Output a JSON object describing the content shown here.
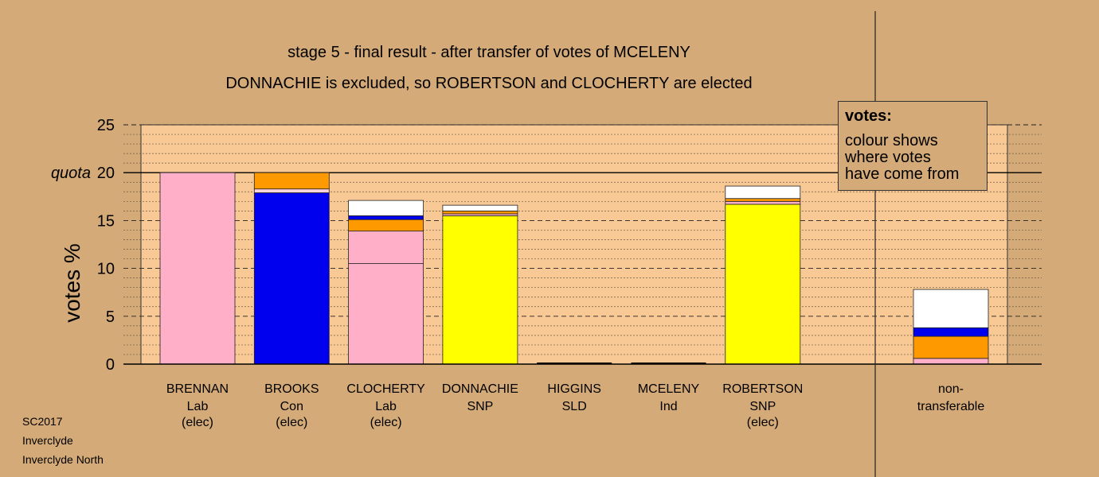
{
  "chart_data": {
    "type": "bar",
    "stacked": true,
    "title": "stage 5 - final result - after transfer of votes of MCELENY",
    "subtitle": "DONNACHIE is excluded, so ROBERTSON and CLOCHERTY are elected",
    "ylabel": "votes %",
    "ylim": [
      0,
      25
    ],
    "yticks": [
      0,
      5,
      10,
      15,
      20,
      25
    ],
    "quota": 20,
    "quota_label": "quota",
    "grid": true,
    "colors": {
      "lab": "#ffafc8",
      "con": "#0000ee",
      "snp": "#ffff00",
      "ind": "#ff9900",
      "other": "#ffffff",
      "lab_light": "#ffd2dc"
    },
    "candidates": [
      {
        "name": "BRENNAN",
        "party": "Lab",
        "status": "(elec)",
        "segments": [
          {
            "value": 20.0,
            "color": "lab"
          }
        ]
      },
      {
        "name": "BROOKS",
        "party": "Con",
        "status": "(elec)",
        "segments": [
          {
            "value": 17.9,
            "color": "con"
          },
          {
            "value": 0.4,
            "color": "lab_light"
          },
          {
            "value": 1.7,
            "color": "ind"
          }
        ]
      },
      {
        "name": "CLOCHERTY",
        "party": "Lab",
        "status": "(elec)",
        "segments": [
          {
            "value": 10.5,
            "color": "lab"
          },
          {
            "value": 3.4,
            "color": "lab"
          },
          {
            "value": 1.2,
            "color": "ind"
          },
          {
            "value": 0.4,
            "color": "con"
          },
          {
            "value": 1.6,
            "color": "other"
          }
        ]
      },
      {
        "name": "DONNACHIE",
        "party": "SNP",
        "status": "",
        "segments": [
          {
            "value": 15.5,
            "color": "snp"
          },
          {
            "value": 0.2,
            "color": "lab"
          },
          {
            "value": 0.3,
            "color": "ind"
          },
          {
            "value": 0.6,
            "color": "other"
          }
        ]
      },
      {
        "name": "HIGGINS",
        "party": "SLD",
        "status": "",
        "segments": []
      },
      {
        "name": "MCELENY",
        "party": "Ind",
        "status": "",
        "segments": []
      },
      {
        "name": "ROBERTSON",
        "party": "SNP",
        "status": "(elec)",
        "segments": [
          {
            "value": 16.7,
            "color": "snp"
          },
          {
            "value": 0.3,
            "color": "lab"
          },
          {
            "value": 0.3,
            "color": "ind"
          },
          {
            "value": 1.3,
            "color": "other"
          }
        ]
      }
    ],
    "nontransferable": {
      "label_line1": "non-",
      "label_line2": "transferable",
      "segments": [
        {
          "value": 0.6,
          "color": "lab"
        },
        {
          "value": 2.3,
          "color": "ind"
        },
        {
          "value": 0.9,
          "color": "con"
        },
        {
          "value": 4.0,
          "color": "other"
        }
      ]
    }
  },
  "legend": {
    "title": "votes:",
    "line1": "colour shows",
    "line2": "where votes",
    "line3": "have come from"
  },
  "footer": {
    "line1": "SC2017",
    "line2": "Inverclyde",
    "line3": "Inverclyde North"
  }
}
